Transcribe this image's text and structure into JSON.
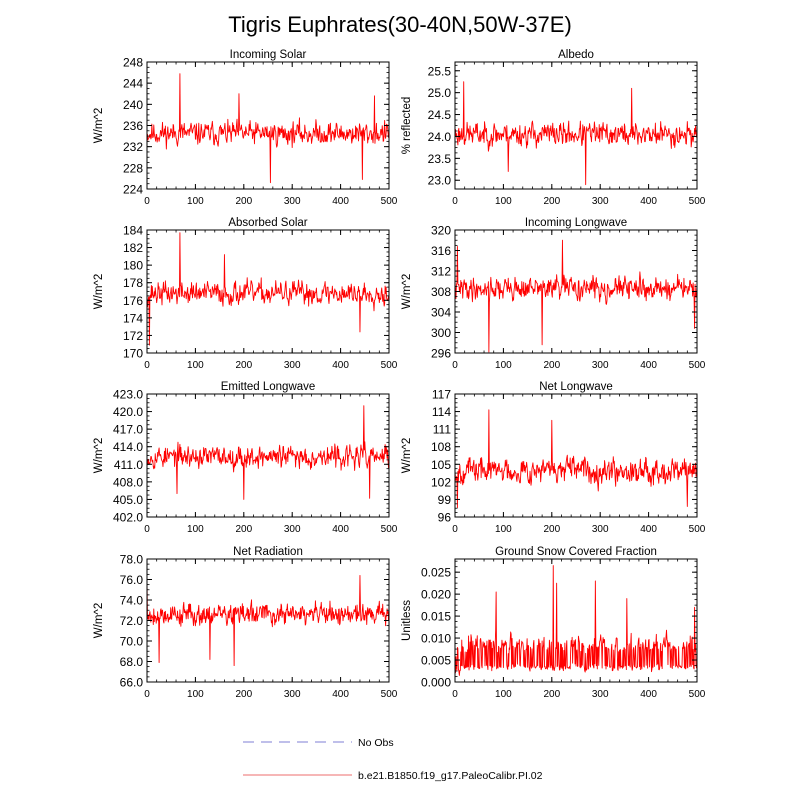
{
  "figure": {
    "title": "Tigris Euphrates(30-40N,50W-37E)"
  },
  "legend": {
    "items": [
      {
        "label": "No Obs",
        "style": "dashed",
        "color": "#9999dd"
      },
      {
        "label": "b.e21.B1850.f19_g17.PaleoCalibr.PI.02",
        "style": "solid",
        "color": "#f08a8a"
      }
    ]
  },
  "series_color": "#ff0000",
  "chart_data": [
    {
      "type": "line",
      "title": "Incoming Solar",
      "ylabel": "W/m^2",
      "xlim": [
        0,
        500
      ],
      "ylim": [
        224,
        248
      ],
      "xticks": [
        0,
        100,
        200,
        300,
        400,
        500
      ],
      "xtick_labels": [
        "0",
        "100",
        "200",
        "300",
        "400",
        "500"
      ],
      "yticks": [
        224,
        228,
        232,
        236,
        240,
        244,
        248
      ],
      "ytick_labels": [
        "224",
        "228",
        "232",
        "236",
        "240",
        "244",
        "248"
      ],
      "mean": 234.5,
      "amplitude": 3.0,
      "seed": 11,
      "spikes": [
        [
          68,
          245.8
        ],
        [
          255,
          225.2
        ],
        [
          445,
          225.8
        ],
        [
          190,
          242.0
        ],
        [
          470,
          241.6
        ]
      ]
    },
    {
      "type": "line",
      "title": "Albedo",
      "ylabel": "% reflected",
      "xlim": [
        0,
        500
      ],
      "ylim": [
        22.8,
        25.7
      ],
      "xticks": [
        0,
        100,
        200,
        300,
        400,
        500
      ],
      "xtick_labels": [
        "0",
        "100",
        "200",
        "300",
        "400",
        "500"
      ],
      "yticks": [
        23.0,
        23.5,
        24.0,
        24.5,
        25.0,
        25.5
      ],
      "ytick_labels": [
        "23.0",
        "23.5",
        "24.0",
        "24.5",
        "25.0",
        "25.5"
      ],
      "mean": 24.05,
      "amplitude": 0.38,
      "seed": 23,
      "spikes": [
        [
          18,
          25.25
        ],
        [
          270,
          22.9
        ],
        [
          365,
          25.1
        ],
        [
          110,
          23.2
        ]
      ]
    },
    {
      "type": "line",
      "title": "Absorbed Solar",
      "ylabel": "W/m^2",
      "xlim": [
        0,
        500
      ],
      "ylim": [
        170,
        184
      ],
      "xticks": [
        0,
        100,
        200,
        300,
        400,
        500
      ],
      "xtick_labels": [
        "0",
        "100",
        "200",
        "300",
        "400",
        "500"
      ],
      "yticks": [
        170,
        172,
        174,
        176,
        178,
        180,
        182,
        184
      ],
      "ytick_labels": [
        "170",
        "172",
        "174",
        "176",
        "178",
        "180",
        "182",
        "184"
      ],
      "mean": 176.8,
      "amplitude": 1.8,
      "seed": 37,
      "spikes": [
        [
          68,
          183.7
        ],
        [
          5,
          170.9
        ],
        [
          440,
          172.4
        ],
        [
          160,
          181.2
        ]
      ]
    },
    {
      "type": "line",
      "title": "Incoming Longwave",
      "ylabel": "W/m^2",
      "xlim": [
        0,
        500
      ],
      "ylim": [
        296,
        320
      ],
      "xticks": [
        0,
        100,
        200,
        300,
        400,
        500
      ],
      "xtick_labels": [
        "0",
        "100",
        "200",
        "300",
        "400",
        "500"
      ],
      "yticks": [
        296,
        300,
        304,
        308,
        312,
        316,
        320
      ],
      "ytick_labels": [
        "296",
        "300",
        "304",
        "308",
        "312",
        "316",
        "320"
      ],
      "mean": 308.6,
      "amplitude": 3.1,
      "seed": 41,
      "spikes": [
        [
          70,
          296.2
        ],
        [
          5,
          316.8
        ],
        [
          222,
          318.0
        ],
        [
          180,
          297.6
        ],
        [
          495,
          300.8
        ]
      ]
    },
    {
      "type": "line",
      "title": "Emitted Longwave",
      "ylabel": "W/m^2",
      "xlim": [
        0,
        500
      ],
      "ylim": [
        402,
        423
      ],
      "xticks": [
        0,
        100,
        200,
        300,
        400,
        500
      ],
      "xtick_labels": [
        "0",
        "100",
        "200",
        "300",
        "400",
        "500"
      ],
      "yticks": [
        402.0,
        405.0,
        408.0,
        411.0,
        414.0,
        417.0,
        420.0,
        423.0
      ],
      "ytick_labels": [
        "402.0",
        "405.0",
        "408.0",
        "411.0",
        "414.0",
        "417.0",
        "420.0",
        "423.0"
      ],
      "mean": 412.3,
      "amplitude": 2.6,
      "seed": 53,
      "spikes": [
        [
          448,
          421.0
        ],
        [
          200,
          405.0
        ],
        [
          460,
          405.2
        ],
        [
          62,
          406.0
        ]
      ]
    },
    {
      "type": "line",
      "title": "Net Longwave",
      "ylabel": "W/m^2",
      "xlim": [
        0,
        500
      ],
      "ylim": [
        96,
        117
      ],
      "xticks": [
        0,
        100,
        200,
        300,
        400,
        500
      ],
      "xtick_labels": [
        "0",
        "100",
        "200",
        "300",
        "400",
        "500"
      ],
      "yticks": [
        96,
        99,
        102,
        105,
        108,
        111,
        114,
        117
      ],
      "ytick_labels": [
        "96",
        "99",
        "102",
        "105",
        "108",
        "111",
        "114",
        "117"
      ],
      "mean": 104.0,
      "amplitude": 2.9,
      "seed": 67,
      "spikes": [
        [
          70,
          114.3
        ],
        [
          5,
          97.6
        ],
        [
          480,
          97.8
        ],
        [
          200,
          112.5
        ]
      ]
    },
    {
      "type": "line",
      "title": "Net Radiation",
      "ylabel": "W/m^2",
      "xlim": [
        0,
        500
      ],
      "ylim": [
        66,
        78
      ],
      "xticks": [
        0,
        100,
        200,
        300,
        400,
        500
      ],
      "xtick_labels": [
        "0",
        "100",
        "200",
        "300",
        "400",
        "500"
      ],
      "yticks": [
        66.0,
        68.0,
        70.0,
        72.0,
        74.0,
        76.0,
        78.0
      ],
      "ytick_labels": [
        "66.0",
        "68.0",
        "70.0",
        "72.0",
        "74.0",
        "76.0",
        "78.0"
      ],
      "mean": 72.6,
      "amplitude": 1.5,
      "seed": 79,
      "spikes": [
        [
          0,
          75.8
        ],
        [
          25,
          67.9
        ],
        [
          180,
          67.6
        ],
        [
          440,
          76.4
        ],
        [
          130,
          68.2
        ]
      ]
    },
    {
      "type": "line",
      "title": "Ground Snow Covered Fraction",
      "ylabel": "Unitless",
      "xlim": [
        0,
        500
      ],
      "ylim": [
        0.0,
        0.028
      ],
      "xticks": [
        0,
        100,
        200,
        300,
        400,
        500
      ],
      "xtick_labels": [
        "0",
        "100",
        "200",
        "300",
        "400",
        "500"
      ],
      "yticks": [
        0.0,
        0.005,
        0.01,
        0.015,
        0.02,
        0.025
      ],
      "ytick_labels": [
        "0.000",
        "0.005",
        "0.010",
        "0.015",
        "0.020",
        "0.025"
      ],
      "mean": 0.0055,
      "amplitude": 0.0032,
      "seed": 97,
      "floor": 0.0005,
      "spikes": [
        [
          203,
          0.0265
        ],
        [
          210,
          0.0225
        ],
        [
          290,
          0.023
        ],
        [
          85,
          0.0205
        ],
        [
          355,
          0.019
        ],
        [
          495,
          0.017
        ]
      ]
    }
  ]
}
